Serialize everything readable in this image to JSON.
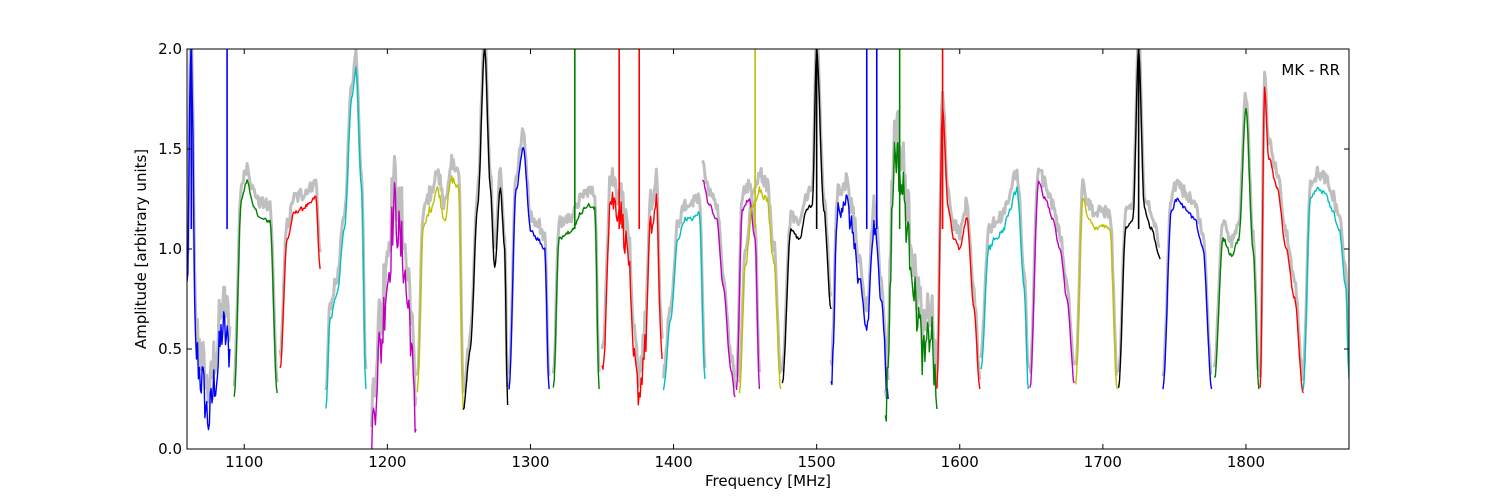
{
  "chart_data": {
    "type": "line",
    "xlabel": "Frequency [MHz]",
    "ylabel": "Amplitude [arbitrary units]",
    "annotation": "MK - RR",
    "xlim": [
      1060,
      1872
    ],
    "ylim": [
      0.0,
      2.0
    ],
    "xticks": [
      1100,
      1200,
      1300,
      1400,
      1500,
      1600,
      1700,
      1800
    ],
    "yticks": [
      0.0,
      0.5,
      1.0,
      1.5,
      2.0
    ],
    "grid": false,
    "envelope_color": "#bfbfbf",
    "series": [
      {
        "color": "#0000ff",
        "noise": 0.12,
        "x": [
          1060,
          1063,
          1066,
          1070,
          1075,
          1080,
          1085,
          1090
        ],
        "y": [
          0.8,
          2.0,
          0.5,
          0.35,
          0.15,
          0.35,
          0.6,
          0.5
        ]
      },
      {
        "color": "#008000",
        "noise": 0.01,
        "x": [
          1093,
          1098,
          1102,
          1107,
          1112,
          1118,
          1123
        ],
        "y": [
          0.26,
          1.25,
          1.34,
          1.2,
          1.15,
          1.14,
          0.28
        ]
      },
      {
        "color": "#ff0000",
        "noise": 0.01,
        "x": [
          1125,
          1130,
          1135,
          1140,
          1145,
          1150,
          1153
        ],
        "y": [
          0.4,
          1.05,
          1.18,
          1.2,
          1.22,
          1.26,
          0.9
        ]
      },
      {
        "color": "#00bfbf",
        "noise": 0.01,
        "x": [
          1157,
          1160,
          1165,
          1170,
          1175,
          1178,
          1182,
          1185
        ],
        "y": [
          0.2,
          0.65,
          0.78,
          1.1,
          1.75,
          1.9,
          1.3,
          0.3
        ]
      },
      {
        "color": "#bf00bf",
        "noise": 0.15,
        "x": [
          1189,
          1195,
          1200,
          1205,
          1210,
          1215,
          1220
        ],
        "y": [
          0.1,
          0.5,
          0.85,
          1.2,
          1.0,
          0.7,
          0.1
        ]
      },
      {
        "color": "#bfbf00",
        "noise": 0.02,
        "x": [
          1221,
          1225,
          1230,
          1235,
          1240,
          1245,
          1250,
          1253
        ],
        "y": [
          0.3,
          1.1,
          1.2,
          1.3,
          1.15,
          1.35,
          1.3,
          0.2
        ]
      },
      {
        "color": "#000000",
        "noise": 0.01,
        "x": [
          1253,
          1258,
          1263,
          1268,
          1272,
          1275,
          1279,
          1282,
          1284
        ],
        "y": [
          0.2,
          0.5,
          1.2,
          2.0,
          1.3,
          0.9,
          1.3,
          1.0,
          0.22
        ]
      },
      {
        "color": "#0000ff",
        "noise": 0.01,
        "x": [
          1285,
          1290,
          1295,
          1300,
          1305,
          1310,
          1313
        ],
        "y": [
          0.3,
          1.3,
          1.5,
          1.1,
          1.05,
          1.0,
          0.3
        ]
      },
      {
        "color": "#008000",
        "noise": 0.01,
        "x": [
          1316,
          1320,
          1325,
          1330,
          1335,
          1340,
          1345,
          1348
        ],
        "y": [
          0.3,
          1.05,
          1.08,
          1.1,
          1.18,
          1.22,
          1.2,
          0.3
        ]
      },
      {
        "color": "#ff0000",
        "noise": 0.08,
        "x": [
          1350,
          1356,
          1362,
          1368,
          1372,
          1376,
          1380,
          1384,
          1388,
          1392
        ],
        "y": [
          0.35,
          1.25,
          1.2,
          1.0,
          0.45,
          0.28,
          0.5,
          1.1,
          1.2,
          0.45
        ]
      },
      {
        "color": "#00bfbf",
        "noise": 0.01,
        "x": [
          1393,
          1398,
          1403,
          1408,
          1413,
          1418,
          1422
        ],
        "y": [
          0.3,
          0.65,
          1.05,
          1.15,
          1.15,
          1.18,
          0.35
        ]
      },
      {
        "color": "#bf00bf",
        "noise": 0.01,
        "x": [
          1420,
          1425,
          1430,
          1435,
          1440,
          1443
        ],
        "y": [
          1.35,
          1.22,
          1.15,
          0.8,
          0.4,
          0.26
        ]
      },
      {
        "color": "#bf00bf",
        "noise": 0.01,
        "x": [
          1444,
          1448,
          1453,
          1457,
          1460
        ],
        "y": [
          0.3,
          1.2,
          1.25,
          1.05,
          0.3
        ]
      },
      {
        "color": "#bfbf00",
        "noise": 0.02,
        "x": [
          1446,
          1450,
          1455,
          1460,
          1465,
          1470,
          1475
        ],
        "y": [
          0.27,
          0.9,
          1.2,
          1.3,
          1.25,
          0.95,
          0.3
        ]
      },
      {
        "color": "#000000",
        "noise": 0.01,
        "x": [
          1476,
          1482,
          1488,
          1493,
          1497,
          1500,
          1505,
          1510
        ],
        "y": [
          0.32,
          1.1,
          1.05,
          1.2,
          1.22,
          2.0,
          1.2,
          0.7
        ]
      },
      {
        "color": "#0000ff",
        "noise": 0.06,
        "x": [
          1510,
          1515,
          1520,
          1525,
          1530,
          1535,
          1540,
          1545,
          1550
        ],
        "y": [
          0.3,
          1.2,
          1.25,
          1.1,
          0.8,
          0.6,
          1.1,
          0.8,
          0.25
        ]
      },
      {
        "color": "#008000",
        "noise": 0.12,
        "x": [
          1548,
          1555,
          1560,
          1565,
          1570,
          1575,
          1580,
          1584
        ],
        "y": [
          0.2,
          1.5,
          1.3,
          1.0,
          0.7,
          0.45,
          0.6,
          0.2
        ]
      },
      {
        "color": "#ff0000",
        "noise": 0.01,
        "x": [
          1584,
          1588,
          1592,
          1596,
          1600,
          1605,
          1610,
          1614
        ],
        "y": [
          0.3,
          1.7,
          1.2,
          1.05,
          1.0,
          1.15,
          0.7,
          0.3
        ]
      },
      {
        "color": "#00bfbf",
        "noise": 0.02,
        "x": [
          1615,
          1620,
          1625,
          1630,
          1635,
          1640,
          1645,
          1648
        ],
        "y": [
          0.4,
          1.0,
          1.05,
          1.1,
          1.2,
          1.3,
          0.8,
          0.3
        ]
      },
      {
        "color": "#bf00bf",
        "noise": 0.01,
        "x": [
          1649,
          1655,
          1660,
          1665,
          1670,
          1675,
          1680
        ],
        "y": [
          0.3,
          1.33,
          1.25,
          1.15,
          1.0,
          0.75,
          0.33
        ]
      },
      {
        "color": "#bfbf00",
        "noise": 0.01,
        "x": [
          1681,
          1686,
          1690,
          1695,
          1700,
          1705,
          1710
        ],
        "y": [
          0.33,
          1.25,
          1.15,
          1.1,
          1.12,
          1.1,
          0.3
        ]
      },
      {
        "color": "#000000",
        "noise": 0.01,
        "x": [
          1711,
          1716,
          1721,
          1725,
          1729,
          1734,
          1740
        ],
        "y": [
          0.3,
          1.1,
          1.15,
          2.0,
          1.2,
          1.1,
          0.95
        ]
      },
      {
        "color": "#0000ff",
        "noise": 0.01,
        "x": [
          1742,
          1748,
          1752,
          1758,
          1764,
          1770,
          1776
        ],
        "y": [
          0.3,
          1.2,
          1.25,
          1.2,
          1.15,
          1.0,
          0.3
        ]
      },
      {
        "color": "#008000",
        "noise": 0.01,
        "x": [
          1778,
          1784,
          1790,
          1795,
          1800,
          1805,
          1809
        ],
        "y": [
          0.35,
          1.05,
          0.97,
          1.05,
          1.7,
          1.0,
          0.3
        ]
      },
      {
        "color": "#ff0000",
        "noise": 0.01,
        "x": [
          1810,
          1813,
          1816,
          1822,
          1828,
          1834,
          1840
        ],
        "y": [
          0.3,
          1.8,
          1.45,
          1.3,
          1.0,
          0.75,
          0.28
        ]
      },
      {
        "color": "#00bfbf",
        "noise": 0.01,
        "x": [
          1840,
          1845,
          1850,
          1855,
          1860,
          1865,
          1870,
          1872
        ],
        "y": [
          0.3,
          1.25,
          1.3,
          1.28,
          1.2,
          1.1,
          0.8,
          0.35
        ]
      }
    ],
    "spikes": [
      {
        "x": 1063,
        "color": "#0000ff"
      },
      {
        "x": 1088,
        "color": "#0000ff"
      },
      {
        "x": 1331,
        "color": "#008000"
      },
      {
        "x": 1362,
        "color": "#ff0000"
      },
      {
        "x": 1376,
        "color": "#ff0000"
      },
      {
        "x": 1457,
        "color": "#bfbf00"
      },
      {
        "x": 1500,
        "color": "#000000"
      },
      {
        "x": 1535,
        "color": "#0000ff"
      },
      {
        "x": 1542,
        "color": "#0000ff"
      },
      {
        "x": 1558,
        "color": "#008000"
      },
      {
        "x": 1588,
        "color": "#ff0000"
      },
      {
        "x": 1725,
        "color": "#000000"
      }
    ]
  }
}
